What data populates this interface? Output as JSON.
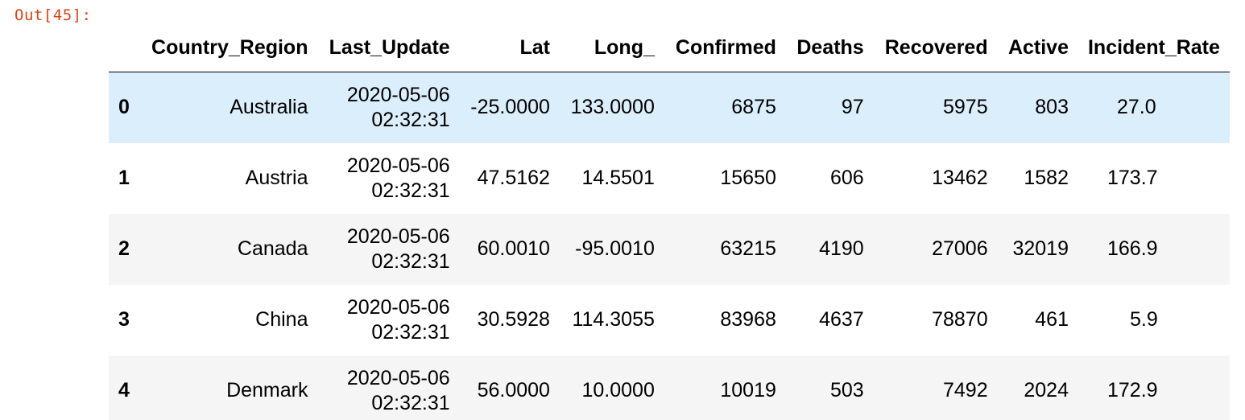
{
  "output": {
    "prompt": "Out[45]:"
  },
  "table": {
    "columns": [
      "",
      "Country_Region",
      "Last_Update",
      "Lat",
      "Long_",
      "Confirmed",
      "Deaths",
      "Recovered",
      "Active",
      "Incident_Rate"
    ],
    "rows": [
      {
        "index": "0",
        "country": "Australia",
        "date": "2020-05-06",
        "time": "02:32:31",
        "lat": "-25.0000",
        "long": "133.0000",
        "confirmed": "6875",
        "deaths": "97",
        "recovered": "5975",
        "active": "803",
        "incident": "27.0"
      },
      {
        "index": "1",
        "country": "Austria",
        "date": "2020-05-06",
        "time": "02:32:31",
        "lat": "47.5162",
        "long": "14.5501",
        "confirmed": "15650",
        "deaths": "606",
        "recovered": "13462",
        "active": "1582",
        "incident": "173.7"
      },
      {
        "index": "2",
        "country": "Canada",
        "date": "2020-05-06",
        "time": "02:32:31",
        "lat": "60.0010",
        "long": "-95.0010",
        "confirmed": "63215",
        "deaths": "4190",
        "recovered": "27006",
        "active": "32019",
        "incident": "166.9"
      },
      {
        "index": "3",
        "country": "China",
        "date": "2020-05-06",
        "time": "02:32:31",
        "lat": "30.5928",
        "long": "114.3055",
        "confirmed": "83968",
        "deaths": "4637",
        "recovered": "78870",
        "active": "461",
        "incident": "5.9"
      },
      {
        "index": "4",
        "country": "Denmark",
        "date": "2020-05-06",
        "time": "02:32:31",
        "lat": "56.0000",
        "long": "10.0000",
        "confirmed": "10019",
        "deaths": "503",
        "recovered": "7492",
        "active": "2024",
        "incident": "172.9"
      }
    ],
    "hovered_row": "0"
  }
}
